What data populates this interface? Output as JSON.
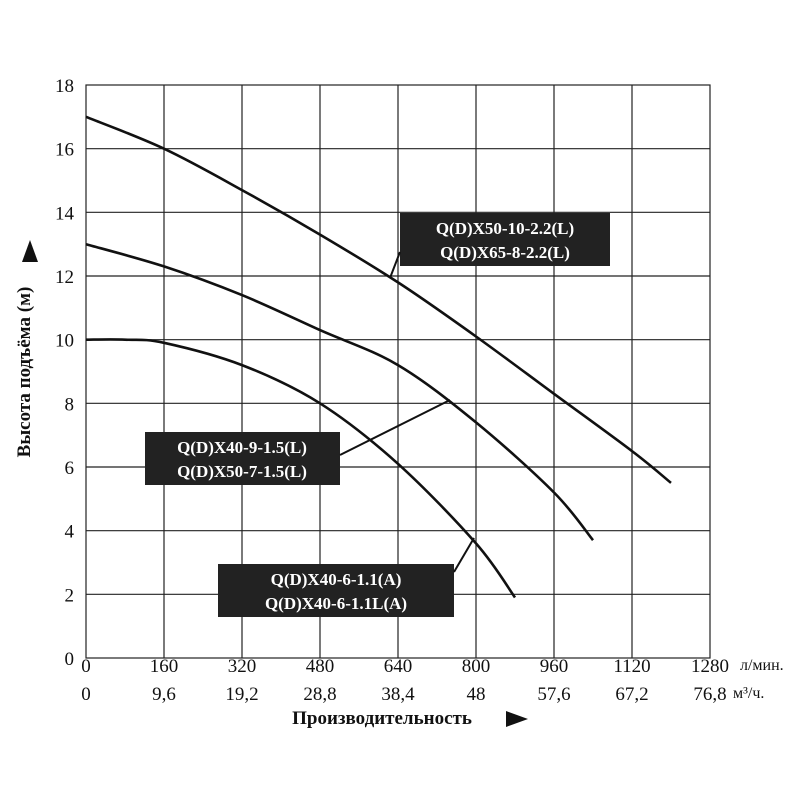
{
  "chart_data": {
    "type": "line",
    "xlabel": "Производительность",
    "ylabel": "Высота подъёма (м)",
    "x_units": [
      "л/мин.",
      "м³/ч."
    ],
    "x_ticks_lpm": [
      "0",
      "160",
      "320",
      "480",
      "640",
      "800",
      "960",
      "1120",
      "1280"
    ],
    "x_ticks_m3h": [
      "0",
      "9,6",
      "19,2",
      "28,8",
      "38,4",
      "48",
      "57,6",
      "67,2",
      "76,8"
    ],
    "y_ticks": [
      "0",
      "2",
      "4",
      "6",
      "8",
      "10",
      "12",
      "14",
      "16",
      "18"
    ],
    "xlim": [
      0,
      1280
    ],
    "ylim": [
      0,
      18
    ],
    "grid": true,
    "series": [
      {
        "labels": [
          "Q(D)X50-10-2.2(L)",
          "Q(D)X65-8-2.2(L)"
        ],
        "x": [
          0,
          160,
          320,
          480,
          640,
          800,
          960,
          1120,
          1200
        ],
        "y": [
          17.0,
          16.0,
          14.7,
          13.3,
          11.8,
          10.1,
          8.3,
          6.5,
          5.5
        ]
      },
      {
        "labels": [
          "Q(D)X40-9-1.5(L)",
          "Q(D)X50-7-1.5(L)"
        ],
        "x": [
          0,
          160,
          320,
          480,
          640,
          800,
          960,
          1040
        ],
        "y": [
          13.0,
          12.3,
          11.4,
          10.3,
          9.2,
          7.4,
          5.2,
          3.7
        ]
      },
      {
        "labels": [
          "Q(D)X40-6-1.1(A)",
          "Q(D)X40-6-1.1L(A)"
        ],
        "x": [
          0,
          80,
          160,
          320,
          480,
          640,
          800,
          880
        ],
        "y": [
          10.0,
          10.0,
          9.9,
          9.2,
          8.0,
          6.1,
          3.6,
          1.9
        ]
      }
    ]
  }
}
